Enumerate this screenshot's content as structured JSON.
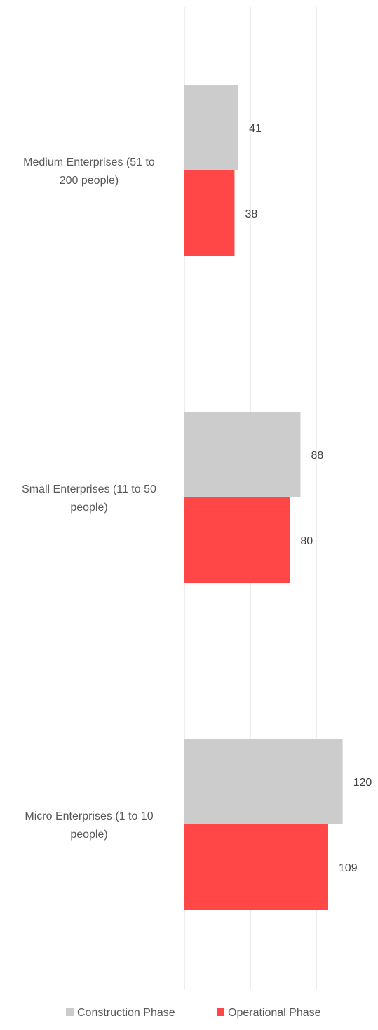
{
  "chart_data": {
    "type": "bar",
    "orientation": "horizontal",
    "title": "",
    "xlabel": "",
    "ylabel": "",
    "categories": [
      [
        "Medium Enterprises (51 to",
        "200 people)"
      ],
      [
        "Small Enterprises (11 to 50",
        "people)"
      ],
      [
        "Micro Enterprises (1 to 10",
        "people)"
      ]
    ],
    "series": [
      {
        "name": "Construction Phase",
        "color": "#cccccc",
        "values": [
          41,
          88,
          120
        ]
      },
      {
        "name": "Operational Phase",
        "color": "#ff4747",
        "values": [
          38,
          80,
          109
        ]
      }
    ],
    "xlim": [
      0,
      140
    ],
    "gridlines_at": [
      0,
      50,
      100
    ],
    "grid": true,
    "legend": "bottom-center",
    "show_data_labels": true
  }
}
